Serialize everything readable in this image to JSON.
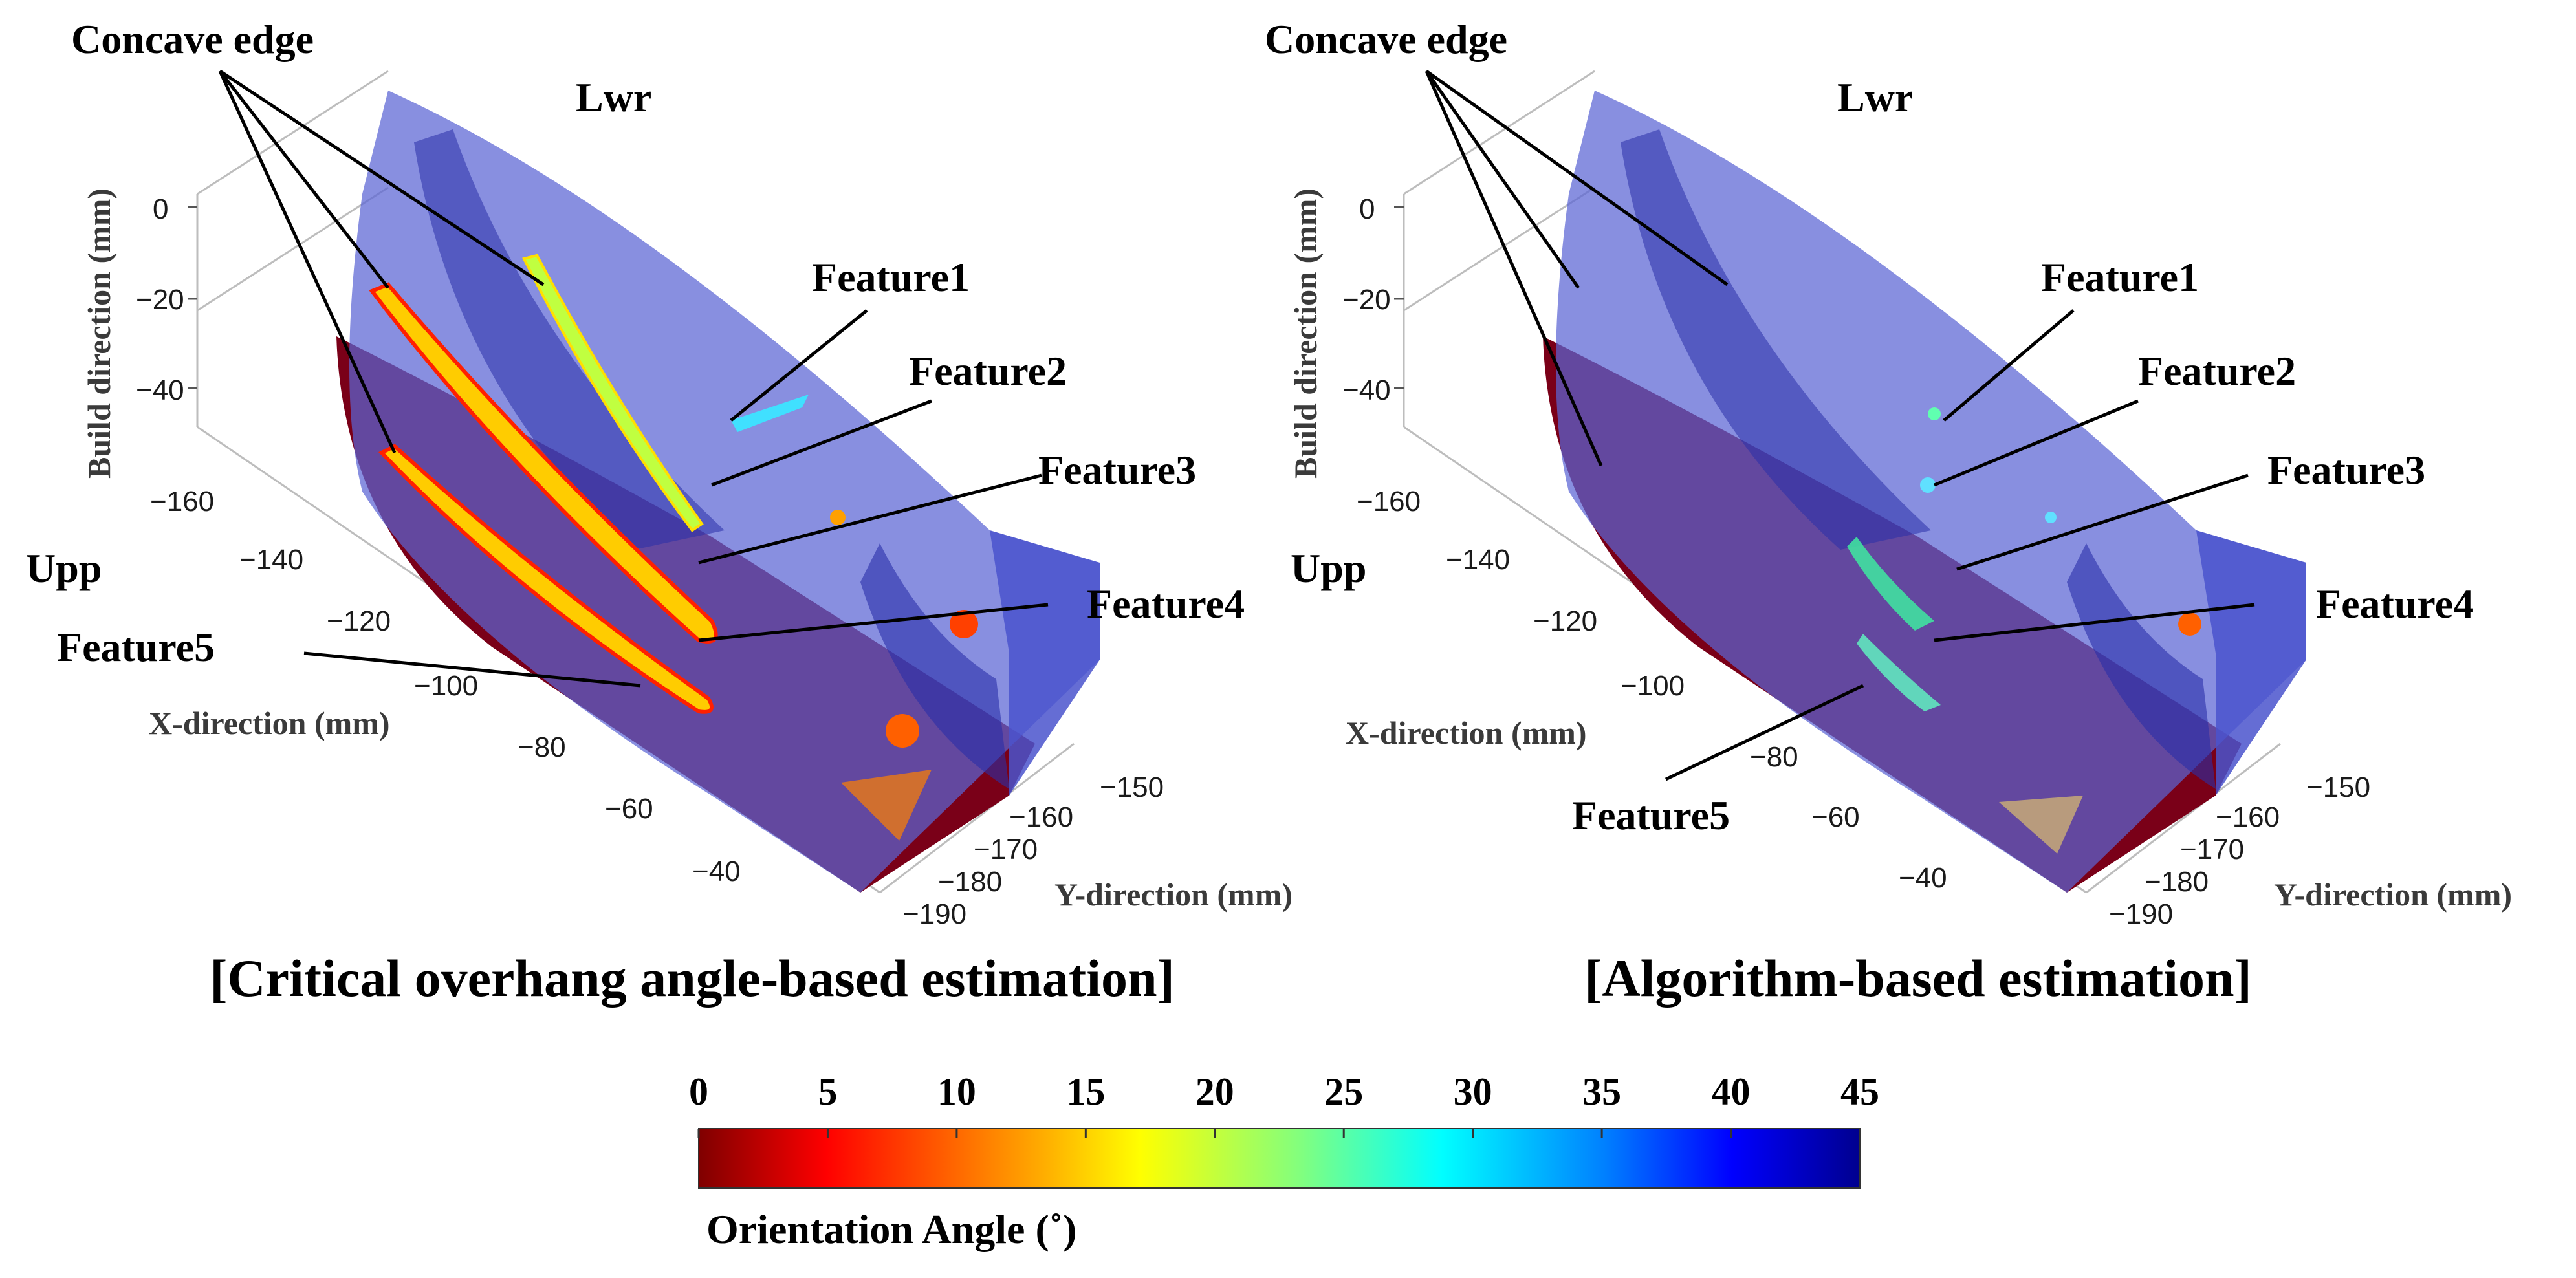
{
  "panels": [
    {
      "id": "left",
      "concave_label": "Concave edge",
      "lwr_label": "Lwr",
      "upp_label": "Upp",
      "features": [
        "Feature1",
        "Feature2",
        "Feature3",
        "Feature4",
        "Feature5"
      ],
      "axes": {
        "z_label": "Build direction (mm)",
        "z_ticks": [
          "0",
          "−20",
          "−40"
        ],
        "x_label": "X-direction (mm)",
        "x_ticks": [
          "−160",
          "−140",
          "−120",
          "−100",
          "−80",
          "−60",
          "−40"
        ],
        "y_label": "Y-direction (mm)",
        "y_ticks": [
          "−150",
          "−160",
          "−170",
          "−180",
          "−190"
        ]
      },
      "caption": "[Critical overhang angle-based estimation]"
    },
    {
      "id": "right",
      "concave_label": "Concave edge",
      "lwr_label": "Lwr",
      "upp_label": "Upp",
      "features": [
        "Feature1",
        "Feature2",
        "Feature3",
        "Feature4",
        "Feature5"
      ],
      "axes": {
        "z_label": "Build direction (mm)",
        "z_ticks": [
          "0",
          "−20",
          "−40"
        ],
        "x_label": "X-direction (mm)",
        "x_ticks": [
          "−160",
          "−140",
          "−120",
          "−100",
          "−80",
          "−60",
          "−40"
        ],
        "y_label": "Y-direction (mm)",
        "y_ticks": [
          "−150",
          "−160",
          "−170",
          "−180",
          "−190"
        ]
      },
      "caption": "[Algorithm-based estimation]"
    }
  ],
  "colorbar": {
    "ticks": [
      "0",
      "5",
      "10",
      "15",
      "20",
      "25",
      "30",
      "35",
      "40",
      "45"
    ],
    "label": "Orientation Angle (˚)",
    "colors": [
      "#7f0000",
      "#ff0000",
      "#ff8000",
      "#ffff00",
      "#80ff80",
      "#00ffff",
      "#0080ff",
      "#0000ff",
      "#00008f"
    ]
  },
  "colors": {
    "part_fill": "#5a64d4",
    "part_dark": "#2a2fa8",
    "base_fill": "#7a0018",
    "leader": "#000000"
  }
}
